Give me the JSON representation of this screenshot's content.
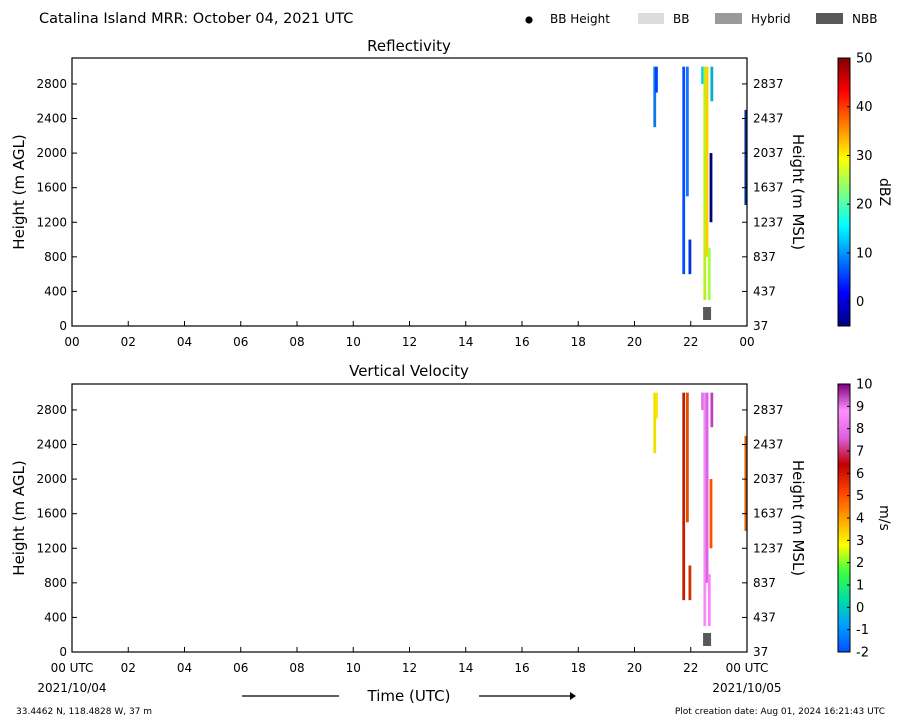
{
  "header": {
    "title": "Catalina Island MRR:  October 04, 2021 UTC",
    "legend": [
      {
        "label": "BB Height",
        "kind": "dot",
        "color": "#000000"
      },
      {
        "label": "BB",
        "kind": "swatch",
        "color": "#dcdcdc"
      },
      {
        "label": "Hybrid",
        "kind": "swatch",
        "color": "#9a9a9a"
      },
      {
        "label": "NBB",
        "kind": "swatch",
        "color": "#595959"
      }
    ]
  },
  "footer": {
    "location": "33.4462 N, 118.4828 W, 37 m",
    "creation": "Plot creation date: Aug 01, 2024 16:21:43 UTC",
    "xlabel": "Time (UTC)",
    "start_date": "2021/10/04",
    "end_date": "2021/10/05"
  },
  "chart_data": [
    {
      "type": "heatmap",
      "title": "Reflectivity",
      "ylabel": "Height (m AGL)",
      "ylabel_right": "Height (m MSL)",
      "x_ticks": [
        "00",
        "02",
        "04",
        "06",
        "08",
        "10",
        "12",
        "14",
        "16",
        "18",
        "20",
        "22",
        "00"
      ],
      "xlim_hours": [
        0,
        24
      ],
      "ylim": [
        0,
        3100
      ],
      "y_ticks": [
        0,
        400,
        800,
        1200,
        1600,
        2000,
        2400,
        2800
      ],
      "y_ticks_right": [
        "37",
        "437",
        "837",
        "1237",
        "1637",
        "2037",
        "2437",
        "2837"
      ],
      "colorbar": {
        "label": "dBZ",
        "range": [
          -5,
          50
        ],
        "ticks": [
          0,
          10,
          20,
          30,
          40,
          50
        ],
        "colormap": [
          "#00007f",
          "#0000ff",
          "#007fff",
          "#00ffff",
          "#7fff7f",
          "#ffff00",
          "#ff7f00",
          "#ff0000",
          "#7f0000"
        ]
      },
      "columns": [
        {
          "t": 20.72,
          "h0": 2300,
          "h1": 3000,
          "color": "#0a7ae8"
        },
        {
          "t": 20.78,
          "h0": 2700,
          "h1": 3000,
          "color": "#0040ff"
        },
        {
          "t": 21.75,
          "h0": 600,
          "h1": 3000,
          "color": "#0050ff"
        },
        {
          "t": 21.88,
          "h0": 1500,
          "h1": 3000,
          "color": "#1a70ff"
        },
        {
          "t": 21.97,
          "h0": 600,
          "h1": 1000,
          "color": "#0030e0"
        },
        {
          "t": 22.42,
          "h0": 2800,
          "h1": 3000,
          "color": "#00d0ff"
        },
        {
          "t": 22.5,
          "h0": 300,
          "h1": 3000,
          "color": "#b8f020"
        },
        {
          "t": 22.58,
          "h0": 800,
          "h1": 3000,
          "color": "#ffd000"
        },
        {
          "t": 22.66,
          "h0": 300,
          "h1": 900,
          "color": "#a0ff40"
        },
        {
          "t": 22.72,
          "h0": 1200,
          "h1": 2000,
          "color": "#000080"
        },
        {
          "t": 22.75,
          "h0": 2600,
          "h1": 3000,
          "color": "#00b0d0"
        },
        {
          "t": 23.96,
          "h0": 1400,
          "h1": 2500,
          "color": "#003090"
        }
      ],
      "bb_markers": [
        {
          "t": 22.58,
          "type": "NBB"
        }
      ]
    },
    {
      "type": "heatmap",
      "title": "Vertical Velocity",
      "ylabel": "Height (m AGL)",
      "ylabel_right": "Height (m MSL)",
      "x_ticks": [
        "00 UTC",
        "02",
        "04",
        "06",
        "08",
        "10",
        "12",
        "14",
        "16",
        "18",
        "20",
        "22",
        "00 UTC"
      ],
      "xlim_hours": [
        0,
        24
      ],
      "ylim": [
        0,
        3100
      ],
      "y_ticks": [
        0,
        400,
        800,
        1200,
        1600,
        2000,
        2400,
        2800
      ],
      "y_ticks_right": [
        "37",
        "437",
        "837",
        "1237",
        "1637",
        "2037",
        "2437",
        "2837"
      ],
      "colorbar": {
        "label": "m/s",
        "range": [
          -2,
          10
        ],
        "ticks": [
          -2,
          -1,
          0,
          1,
          2,
          3,
          4,
          5,
          6,
          7,
          8,
          9,
          10
        ],
        "colormap": [
          "#0050ff",
          "#00a0ff",
          "#00e0a0",
          "#40ff40",
          "#ffff00",
          "#ffa000",
          "#ff4000",
          "#c00000",
          "#e060e0",
          "#ff90ff",
          "#800080"
        ]
      },
      "columns": [
        {
          "t": 20.72,
          "h0": 2300,
          "h1": 3000,
          "color": "#f0e000"
        },
        {
          "t": 20.78,
          "h0": 2700,
          "h1": 3000,
          "color": "#ffe000"
        },
        {
          "t": 21.75,
          "h0": 600,
          "h1": 3000,
          "color": "#c02000"
        },
        {
          "t": 21.88,
          "h0": 1500,
          "h1": 3000,
          "color": "#e05000"
        },
        {
          "t": 21.97,
          "h0": 600,
          "h1": 1000,
          "color": "#d03000"
        },
        {
          "t": 22.42,
          "h0": 2800,
          "h1": 3000,
          "color": "#e070e0"
        },
        {
          "t": 22.5,
          "h0": 300,
          "h1": 3000,
          "color": "#f090f0"
        },
        {
          "t": 22.58,
          "h0": 800,
          "h1": 3000,
          "color": "#e060e8"
        },
        {
          "t": 22.66,
          "h0": 300,
          "h1": 900,
          "color": "#ff80ff"
        },
        {
          "t": 22.72,
          "h0": 1200,
          "h1": 2000,
          "color": "#ff5000"
        },
        {
          "t": 22.75,
          "h0": 2600,
          "h1": 3000,
          "color": "#c040c0"
        },
        {
          "t": 23.96,
          "h0": 1400,
          "h1": 2500,
          "color": "#e06000"
        }
      ],
      "bb_markers": [
        {
          "t": 22.58,
          "type": "NBB"
        }
      ]
    }
  ]
}
